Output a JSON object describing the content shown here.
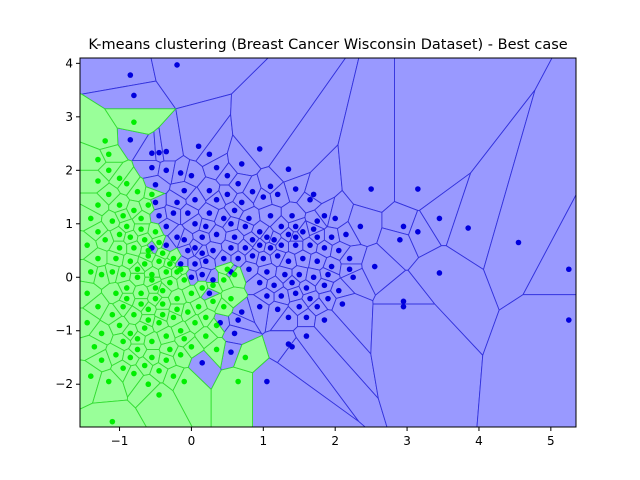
{
  "chart_data": {
    "type": "scatter",
    "title": "K-means clustering (Breast Cancer Wisconsin Dataset) - Best case",
    "xlabel": "",
    "ylabel": "",
    "xlim": [
      -1.55,
      5.35
    ],
    "ylim": [
      -2.8,
      4.1
    ],
    "xticks": [
      -1,
      0,
      1,
      2,
      3,
      4,
      5
    ],
    "yticks": [
      -2,
      -1,
      0,
      1,
      2,
      3,
      4
    ],
    "grid": false,
    "background": "voronoi",
    "colors": {
      "cluster_blue_region": "#9999ff",
      "cluster_green_region": "#99ff99",
      "cluster_blue_point": "#0000dd",
      "cluster_green_point": "#00ee00",
      "blue_edge": "#3333dd",
      "green_edge": "#33dd33"
    },
    "series": [
      {
        "color": "#0000dd",
        "points": [
          [
            -0.85,
            3.78
          ],
          [
            -0.8,
            3.4
          ],
          [
            -0.2,
            3.97
          ],
          [
            -0.85,
            2.57
          ],
          [
            -0.55,
            2.32
          ],
          [
            -0.45,
            2.33
          ],
          [
            -0.35,
            2.35
          ],
          [
            0.1,
            2.45
          ],
          [
            0.25,
            2.3
          ],
          [
            0.0,
            1.9
          ],
          [
            -0.55,
            2.05
          ],
          [
            -0.35,
            2.0
          ],
          [
            -0.15,
            1.95
          ],
          [
            0.35,
            2.05
          ],
          [
            0.7,
            2.12
          ],
          [
            0.5,
            1.9
          ],
          [
            0.95,
            2.4
          ],
          [
            1.35,
            2.02
          ],
          [
            -0.5,
            1.73
          ],
          [
            -0.1,
            1.62
          ],
          [
            0.25,
            1.62
          ],
          [
            0.5,
            1.55
          ],
          [
            0.65,
            1.75
          ],
          [
            0.85,
            1.6
          ],
          [
            1.1,
            1.7
          ],
          [
            1.45,
            1.65
          ],
          [
            -0.5,
            1.4
          ],
          [
            -0.2,
            1.4
          ],
          [
            0.05,
            1.45
          ],
          [
            0.35,
            1.45
          ],
          [
            0.7,
            1.4
          ],
          [
            1.0,
            1.5
          ],
          [
            1.2,
            1.55
          ],
          [
            1.7,
            1.55
          ],
          [
            1.65,
            1.45
          ],
          [
            -0.45,
            1.15
          ],
          [
            -0.25,
            1.2
          ],
          [
            -0.05,
            1.2
          ],
          [
            0.25,
            1.2
          ],
          [
            0.45,
            1.1
          ],
          [
            0.6,
            1.25
          ],
          [
            0.8,
            1.1
          ],
          [
            1.1,
            1.15
          ],
          [
            1.4,
            1.15
          ],
          [
            1.85,
            1.15
          ],
          [
            1.75,
            1.05
          ],
          [
            -0.35,
            0.95
          ],
          [
            0.05,
            1.0
          ],
          [
            0.2,
            0.95
          ],
          [
            0.55,
            1.0
          ],
          [
            0.75,
            0.95
          ],
          [
            0.95,
            0.85
          ],
          [
            1.25,
            0.95
          ],
          [
            1.45,
            0.95
          ],
          [
            1.7,
            0.9
          ],
          [
            2.0,
            1.1
          ],
          [
            2.5,
            1.65
          ],
          [
            3.15,
            1.65
          ],
          [
            -0.1,
            0.7
          ],
          [
            0.15,
            0.75
          ],
          [
            0.35,
            0.8
          ],
          [
            0.6,
            0.75
          ],
          [
            0.85,
            0.7
          ],
          [
            1.05,
            0.75
          ],
          [
            1.15,
            0.7
          ],
          [
            1.35,
            0.8
          ],
          [
            1.45,
            0.75
          ],
          [
            1.55,
            0.85
          ],
          [
            1.75,
            0.75
          ],
          [
            1.95,
            0.75
          ],
          [
            2.15,
            0.8
          ],
          [
            2.35,
            0.95
          ],
          [
            2.95,
            0.95
          ],
          [
            2.9,
            0.7
          ],
          [
            3.15,
            0.85
          ],
          [
            3.45,
            1.1
          ],
          [
            3.85,
            0.92
          ],
          [
            4.55,
            0.65
          ],
          [
            0.05,
            0.55
          ],
          [
            0.3,
            0.5
          ],
          [
            0.55,
            0.55
          ],
          [
            0.75,
            0.55
          ],
          [
            0.95,
            0.6
          ],
          [
            1.1,
            0.55
          ],
          [
            1.25,
            0.6
          ],
          [
            1.45,
            0.6
          ],
          [
            1.65,
            0.6
          ],
          [
            1.85,
            0.55
          ],
          [
            2.05,
            0.5
          ],
          [
            2.2,
            0.35
          ],
          [
            0.2,
            0.3
          ],
          [
            0.45,
            0.35
          ],
          [
            0.65,
            0.35
          ],
          [
            0.85,
            0.4
          ],
          [
            1.0,
            0.35
          ],
          [
            1.2,
            0.4
          ],
          [
            1.35,
            0.3
          ],
          [
            1.55,
            0.35
          ],
          [
            1.75,
            0.3
          ],
          [
            1.95,
            0.2
          ],
          [
            2.2,
            0.15
          ],
          [
            2.55,
            0.2
          ],
          [
            0.55,
            0.1
          ],
          [
            0.8,
            0.15
          ],
          [
            1.05,
            0.1
          ],
          [
            1.3,
            0.05
          ],
          [
            1.5,
            0.05
          ],
          [
            1.7,
            0.0
          ],
          [
            1.9,
            0.05
          ],
          [
            2.25,
            0.0
          ],
          [
            0.95,
            -0.1
          ],
          [
            1.15,
            -0.15
          ],
          [
            1.4,
            -0.1
          ],
          [
            1.6,
            -0.2
          ],
          [
            1.85,
            -0.15
          ],
          [
            2.05,
            -0.25
          ],
          [
            1.05,
            -0.35
          ],
          [
            1.25,
            -0.35
          ],
          [
            1.45,
            -0.3
          ],
          [
            1.65,
            -0.4
          ],
          [
            1.9,
            -0.4
          ],
          [
            2.1,
            -0.5
          ],
          [
            1.5,
            -0.55
          ],
          [
            1.75,
            -0.55
          ],
          [
            1.35,
            -0.75
          ],
          [
            1.6,
            -0.75
          ],
          [
            1.85,
            -0.8
          ],
          [
            1.2,
            -0.6
          ],
          [
            0.95,
            -0.55
          ],
          [
            0.7,
            -0.65
          ],
          [
            0.65,
            -0.8
          ],
          [
            0.4,
            -0.85
          ],
          [
            0.6,
            -1.05
          ],
          [
            1.35,
            -1.25
          ],
          [
            1.4,
            -1.3
          ],
          [
            1.6,
            -1.1
          ],
          [
            0.55,
            -1.4
          ],
          [
            0.15,
            -1.6
          ],
          [
            1.05,
            -1.95
          ],
          [
            2.95,
            -0.45
          ],
          [
            2.95,
            -0.55
          ],
          [
            3.45,
            0.08
          ],
          [
            5.25,
            0.15
          ],
          [
            5.25,
            -0.8
          ],
          [
            0.15,
            0.05
          ],
          [
            0.3,
            -0.05
          ],
          [
            0.05,
            0.25
          ],
          [
            -0.05,
            0.5
          ],
          [
            0.15,
            0.45
          ],
          [
            -0.2,
            0.75
          ],
          [
            -0.15,
            0.25
          ],
          [
            0.0,
            0.0
          ],
          [
            0.25,
            -0.3
          ],
          [
            -0.55,
            0.55
          ],
          [
            -0.35,
            0.6
          ]
        ]
      },
      {
        "color": "#00ee00",
        "points": [
          [
            -1.2,
            2.55
          ],
          [
            -1.15,
            2.3
          ],
          [
            -1.3,
            2.2
          ],
          [
            -0.8,
            2.9
          ],
          [
            -1.15,
            2.0
          ],
          [
            -1.3,
            1.8
          ],
          [
            -1.0,
            1.85
          ],
          [
            -0.75,
            1.6
          ],
          [
            -0.9,
            1.75
          ],
          [
            -1.15,
            1.55
          ],
          [
            -1.3,
            1.35
          ],
          [
            -1.4,
            1.1
          ],
          [
            -1.0,
            1.35
          ],
          [
            -0.8,
            1.25
          ],
          [
            -0.6,
            1.35
          ],
          [
            -1.1,
            1.05
          ],
          [
            -0.9,
            0.95
          ],
          [
            -1.3,
            0.85
          ],
          [
            -1.45,
            0.6
          ],
          [
            -1.2,
            0.7
          ],
          [
            -1.0,
            0.8
          ],
          [
            -0.7,
            0.9
          ],
          [
            -0.5,
            0.85
          ],
          [
            -1.3,
            0.35
          ],
          [
            -1.4,
            0.1
          ],
          [
            -1.25,
            0.05
          ],
          [
            -1.45,
            -0.3
          ],
          [
            -1.3,
            -0.55
          ],
          [
            -1.45,
            -0.85
          ],
          [
            -1.25,
            -1.05
          ],
          [
            -1.35,
            -1.3
          ],
          [
            -1.25,
            -1.55
          ],
          [
            -1.4,
            -1.85
          ],
          [
            -1.15,
            -1.95
          ],
          [
            -1.1,
            -2.7
          ],
          [
            -0.95,
            -1.7
          ],
          [
            -0.8,
            -1.8
          ],
          [
            -0.6,
            -2.0
          ],
          [
            -0.45,
            -2.2
          ],
          [
            -0.25,
            -1.85
          ],
          [
            -0.1,
            -1.95
          ],
          [
            0.35,
            -1.35
          ],
          [
            0.65,
            -1.95
          ],
          [
            0.75,
            -1.5
          ],
          [
            -0.75,
            -1.35
          ],
          [
            -0.55,
            -1.5
          ],
          [
            -0.35,
            -1.55
          ],
          [
            -0.15,
            -1.45
          ],
          [
            0.0,
            -1.3
          ],
          [
            0.2,
            -1.1
          ],
          [
            0.35,
            -0.9
          ],
          [
            0.45,
            -0.55
          ],
          [
            0.55,
            -0.4
          ],
          [
            0.3,
            -0.45
          ],
          [
            0.1,
            -0.55
          ],
          [
            -0.05,
            -0.65
          ],
          [
            -0.25,
            -0.75
          ],
          [
            -0.45,
            -0.85
          ],
          [
            -0.65,
            -0.95
          ],
          [
            -0.85,
            -1.05
          ],
          [
            -1.0,
            -0.9
          ],
          [
            -1.1,
            -0.7
          ],
          [
            -0.95,
            -0.55
          ],
          [
            -0.8,
            -0.7
          ],
          [
            -0.6,
            -0.6
          ],
          [
            -0.4,
            -0.5
          ],
          [
            -0.2,
            -0.4
          ],
          [
            0.0,
            -0.3
          ],
          [
            0.15,
            -0.2
          ],
          [
            0.3,
            -0.15
          ],
          [
            0.45,
            -0.05
          ],
          [
            0.5,
            0.15
          ],
          [
            -1.05,
            -0.3
          ],
          [
            -0.9,
            -0.2
          ],
          [
            -0.7,
            -0.3
          ],
          [
            -0.5,
            -0.2
          ],
          [
            -0.3,
            -0.1
          ],
          [
            -0.1,
            -0.05
          ],
          [
            -1.1,
            0.1
          ],
          [
            -0.95,
            0.05
          ],
          [
            -0.75,
            0.0
          ],
          [
            -0.55,
            0.05
          ],
          [
            -0.35,
            0.1
          ],
          [
            -0.15,
            0.15
          ],
          [
            -1.05,
            0.35
          ],
          [
            -0.85,
            0.3
          ],
          [
            -0.65,
            0.25
          ],
          [
            -0.45,
            0.3
          ],
          [
            -0.25,
            0.35
          ],
          [
            -1.0,
            0.55
          ],
          [
            -0.8,
            0.55
          ],
          [
            -0.6,
            0.5
          ],
          [
            -0.4,
            0.45
          ],
          [
            -0.85,
            0.75
          ],
          [
            -0.65,
            0.7
          ],
          [
            -0.45,
            0.65
          ],
          [
            -0.3,
            0.25
          ],
          [
            -0.5,
            -0.4
          ],
          [
            -0.7,
            -0.5
          ],
          [
            -0.9,
            -0.4
          ],
          [
            -0.6,
            -0.8
          ],
          [
            -0.4,
            -0.7
          ],
          [
            -0.2,
            -0.6
          ],
          [
            -0.75,
            -1.15
          ],
          [
            -0.55,
            -1.2
          ],
          [
            -0.35,
            -1.1
          ],
          [
            -0.15,
            -1.0
          ],
          [
            -0.95,
            -1.2
          ],
          [
            -1.05,
            -1.45
          ],
          [
            -0.85,
            -1.5
          ],
          [
            -0.65,
            -1.65
          ],
          [
            -0.45,
            -1.75
          ],
          [
            -0.3,
            -1.35
          ],
          [
            0.05,
            -0.85
          ],
          [
            -0.1,
            -1.15
          ],
          [
            0.2,
            -0.75
          ],
          [
            -0.55,
            -0.05
          ],
          [
            -0.75,
            0.15
          ],
          [
            -0.6,
            0.4
          ],
          [
            -0.4,
            -0.25
          ],
          [
            -0.2,
            0.1
          ],
          [
            0.6,
            0.05
          ],
          [
            -0.95,
            1.15
          ],
          [
            -0.7,
            1.1
          ],
          [
            -0.55,
            1.55
          ]
        ]
      }
    ]
  }
}
